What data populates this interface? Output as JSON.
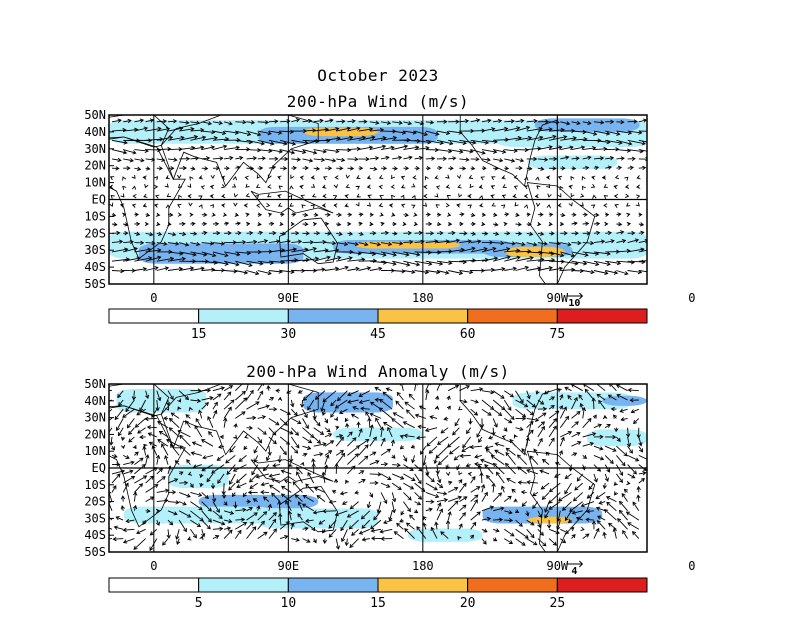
{
  "header": {
    "title": "October 2023"
  },
  "panels": [
    {
      "title": "200-hPa Wind (m/s)",
      "lat_labels": [
        "50N",
        "40N",
        "30N",
        "20N",
        "10N",
        "EQ",
        "10S",
        "20S",
        "30S",
        "40S",
        "50S"
      ],
      "lon_labels": [
        "0",
        "90E",
        "180",
        "90W",
        "0"
      ],
      "reference_vector": "10",
      "colorbar": {
        "levels": [
          "15",
          "30",
          "45",
          "60",
          "75"
        ],
        "colors": [
          "#ffffff",
          "#b4f0fa",
          "#78b4f0",
          "#fac346",
          "#f06e1e",
          "#dc1e1e"
        ]
      }
    },
    {
      "title": "200-hPa Wind Anomaly (m/s)",
      "lat_labels": [
        "50N",
        "40N",
        "30N",
        "20N",
        "10N",
        "EQ",
        "10S",
        "20S",
        "30S",
        "40S",
        "50S"
      ],
      "lon_labels": [
        "0",
        "90E",
        "180",
        "90W",
        "0"
      ],
      "reference_vector": "4",
      "colorbar": {
        "levels": [
          "5",
          "10",
          "15",
          "20",
          "25"
        ],
        "colors": [
          "#ffffff",
          "#b4f0fa",
          "#78b4f0",
          "#fac346",
          "#f06e1e",
          "#dc1e1e"
        ]
      }
    }
  ]
}
